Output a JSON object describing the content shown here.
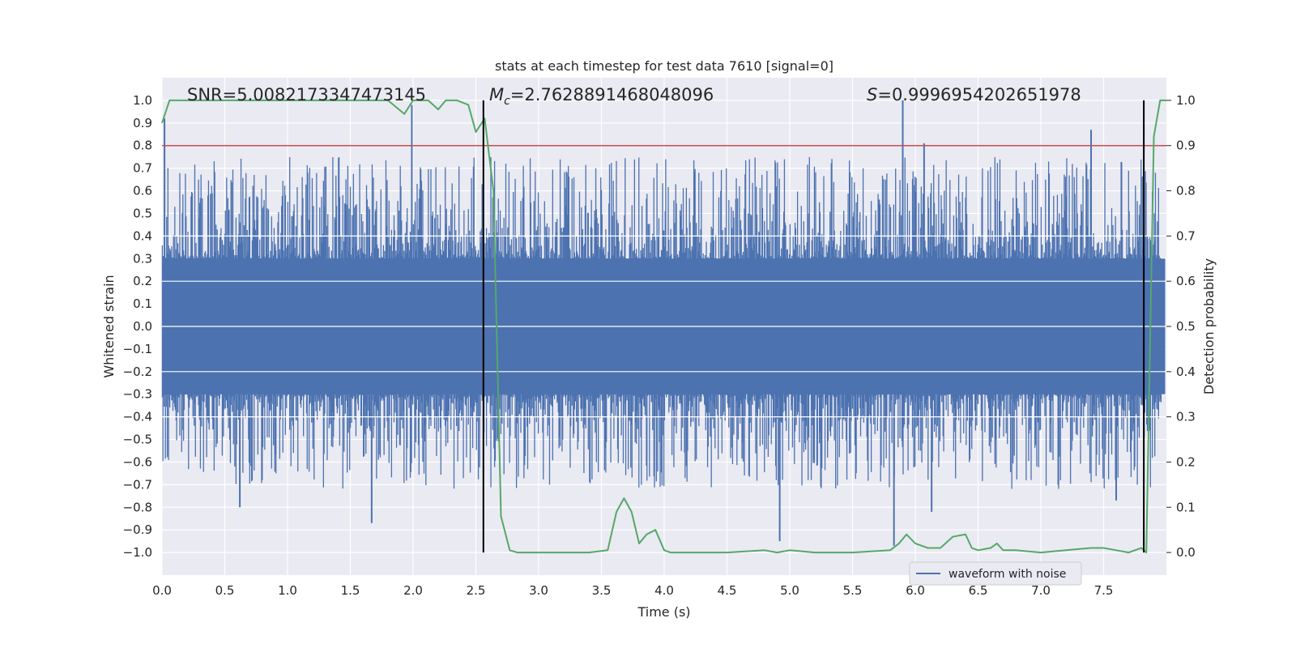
{
  "chart_data": {
    "type": "line",
    "title": "stats at each timestep for test data 7610 [signal=0]",
    "xlabel": "Time (s)",
    "ylabel": "Whitened strain",
    "y2label": "Detection probability",
    "xlim": [
      0.0,
      8.0
    ],
    "ylim": [
      -1.1,
      1.1
    ],
    "y2lim": [
      -0.05,
      1.05
    ],
    "xticks": [
      "0.0",
      "0.5",
      "1.0",
      "1.5",
      "2.0",
      "2.5",
      "3.0",
      "3.5",
      "4.0",
      "4.5",
      "5.0",
      "5.5",
      "6.0",
      "6.5",
      "7.0",
      "7.5"
    ],
    "yticks": [
      "-1.0",
      "-0.9",
      "-0.8",
      "-0.7",
      "-0.6",
      "-0.5",
      "-0.4",
      "-0.3",
      "-0.2",
      "-0.1",
      "0.0",
      "0.1",
      "0.2",
      "0.3",
      "0.4",
      "0.5",
      "0.6",
      "0.7",
      "0.8",
      "0.9",
      "1.0"
    ],
    "y2ticks": [
      "0.0",
      "0.1",
      "0.2",
      "0.3",
      "0.4",
      "0.5",
      "0.6",
      "0.7",
      "0.8",
      "0.9",
      "1.0"
    ],
    "grid": true,
    "legend": {
      "position": "lower-right",
      "entries": [
        "waveform with noise"
      ]
    },
    "annotations": {
      "snr": "SNR=5.0082173347473145",
      "mc_symbol": "M",
      "mc_sub": "c",
      "mc_value": "=2.7628891468048096",
      "s_symbol": "S",
      "s_value": "=0.9996954202651978"
    },
    "threshold": {
      "axis": "y2",
      "value": 0.9,
      "color": "#c44e52"
    },
    "vertical_lines": [
      2.56,
      7.82
    ],
    "colors": {
      "waveform": "#4c72b0",
      "probability": "#55a868",
      "threshold": "#c44e52",
      "vlines": "#000000",
      "background": "#eaeaf2"
    },
    "series": [
      {
        "name": "waveform with noise",
        "axis": "y",
        "note_peaks": [
          [
            0.02,
            0.92
          ],
          [
            1.99,
            0.98
          ],
          [
            5.9,
            1.0
          ],
          [
            6.07,
            0.81
          ],
          [
            7.4,
            0.87
          ],
          [
            0.62,
            -0.8
          ],
          [
            1.67,
            -0.87
          ],
          [
            4.92,
            -0.95
          ],
          [
            5.83,
            -0.97
          ],
          [
            6.13,
            -0.82
          ],
          [
            7.6,
            -0.77
          ]
        ]
      },
      {
        "name": "",
        "axis": "y2",
        "x": [
          0.0,
          0.06,
          0.5,
          1.0,
          1.5,
          1.8,
          1.93,
          2.0,
          2.12,
          2.2,
          2.26,
          2.35,
          2.44,
          2.5,
          2.57,
          2.64,
          2.7,
          2.77,
          2.83,
          2.9,
          3.0,
          3.2,
          3.4,
          3.55,
          3.62,
          3.68,
          3.74,
          3.8,
          3.86,
          3.93,
          4.0,
          4.05,
          4.2,
          4.5,
          4.8,
          4.9,
          5.0,
          5.2,
          5.5,
          5.8,
          5.87,
          5.93,
          6.0,
          6.1,
          6.2,
          6.3,
          6.4,
          6.45,
          6.5,
          6.6,
          6.65,
          6.7,
          6.8,
          7.0,
          7.2,
          7.4,
          7.5,
          7.6,
          7.7,
          7.8,
          7.84,
          7.9,
          7.95,
          8.0
        ],
        "y": [
          0.95,
          1.0,
          1.0,
          1.0,
          1.0,
          1.0,
          0.97,
          1.0,
          1.0,
          0.98,
          1.0,
          1.0,
          0.99,
          0.93,
          0.96,
          0.8,
          0.08,
          0.005,
          0.0,
          0.0,
          0.0,
          0.0,
          0.0,
          0.005,
          0.09,
          0.12,
          0.09,
          0.02,
          0.04,
          0.05,
          0.005,
          0.0,
          0.0,
          0.0,
          0.005,
          0.0,
          0.005,
          0.0,
          0.0,
          0.005,
          0.02,
          0.04,
          0.02,
          0.01,
          0.01,
          0.035,
          0.04,
          0.01,
          0.005,
          0.01,
          0.02,
          0.005,
          0.005,
          0.0,
          0.005,
          0.01,
          0.01,
          0.005,
          0.0,
          0.01,
          0.0,
          0.92,
          1.0,
          1.0
        ]
      }
    ]
  }
}
